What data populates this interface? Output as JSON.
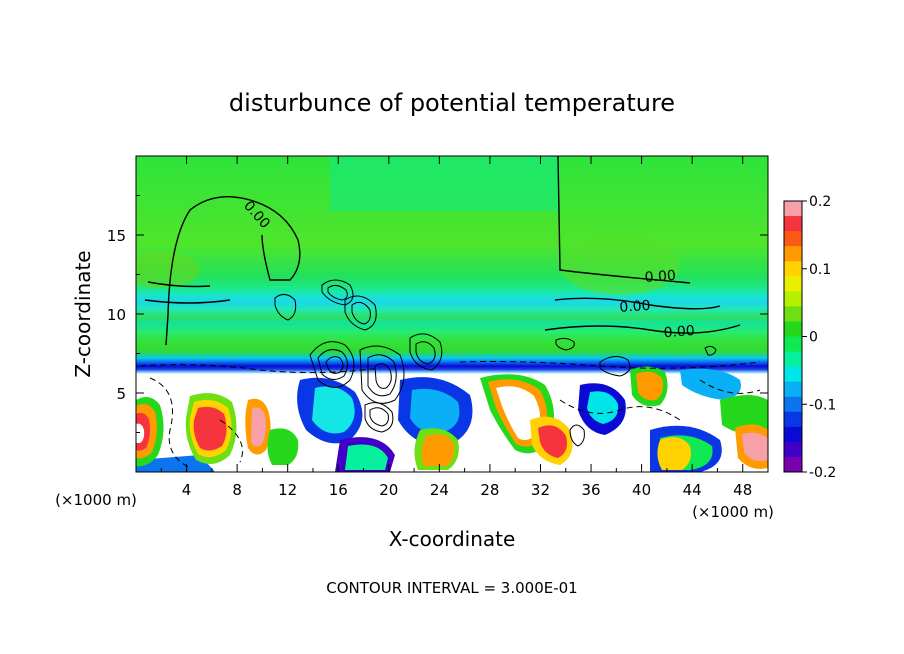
{
  "chart_data": {
    "type": "heatmap",
    "title": "disturbunce of potential temperature",
    "xlabel": "X-coordinate",
    "ylabel": "Z-coordinate",
    "x_unit_left": "(×1000 m)",
    "x_unit_right": "(×1000 m)",
    "xlim": [
      0,
      50
    ],
    "ylim": [
      0,
      20
    ],
    "x_ticks": [
      4,
      8,
      12,
      16,
      20,
      24,
      28,
      32,
      36,
      40,
      44,
      48
    ],
    "x_tick_labels": [
      "4",
      "8",
      "12",
      "16",
      "20",
      "24",
      "28",
      "32",
      "36",
      "40",
      "44",
      "48"
    ],
    "y_ticks": [
      5,
      10,
      15
    ],
    "y_tick_labels": [
      "5",
      "10",
      "15"
    ],
    "contour_labels": [
      {
        "text": "0.00",
        "x": 9.3,
        "y": 16.1,
        "angle": 48
      },
      {
        "text": "0.00",
        "x": 41.5,
        "y": 12.1,
        "angle": -4
      },
      {
        "text": "0.00",
        "x": 39.5,
        "y": 10.2,
        "angle": -4
      },
      {
        "text": "0.00",
        "x": 43.0,
        "y": 8.6,
        "angle": -4
      }
    ],
    "colorbar": {
      "min": -0.2,
      "max": 0.2,
      "ticks": [
        0.2,
        0.1,
        0,
        -0.1,
        -0.2
      ],
      "tick_labels": [
        "0.2",
        "0.1",
        "0",
        "-0.1",
        "-0.2"
      ],
      "colors": [
        "#f7a0a8",
        "#f6343e",
        "#fb5a14",
        "#ff9a00",
        "#ffd200",
        "#e8f000",
        "#b5f000",
        "#6ee012",
        "#25d81c",
        "#10ea52",
        "#06f09e",
        "#00e6e8",
        "#0ab0f6",
        "#0d74f0",
        "#0a37e6",
        "#0a0ad4",
        "#4000c8",
        "#7a00b0"
      ]
    },
    "footnote": "CONTOUR INTERVAL = 3.000E-01"
  }
}
